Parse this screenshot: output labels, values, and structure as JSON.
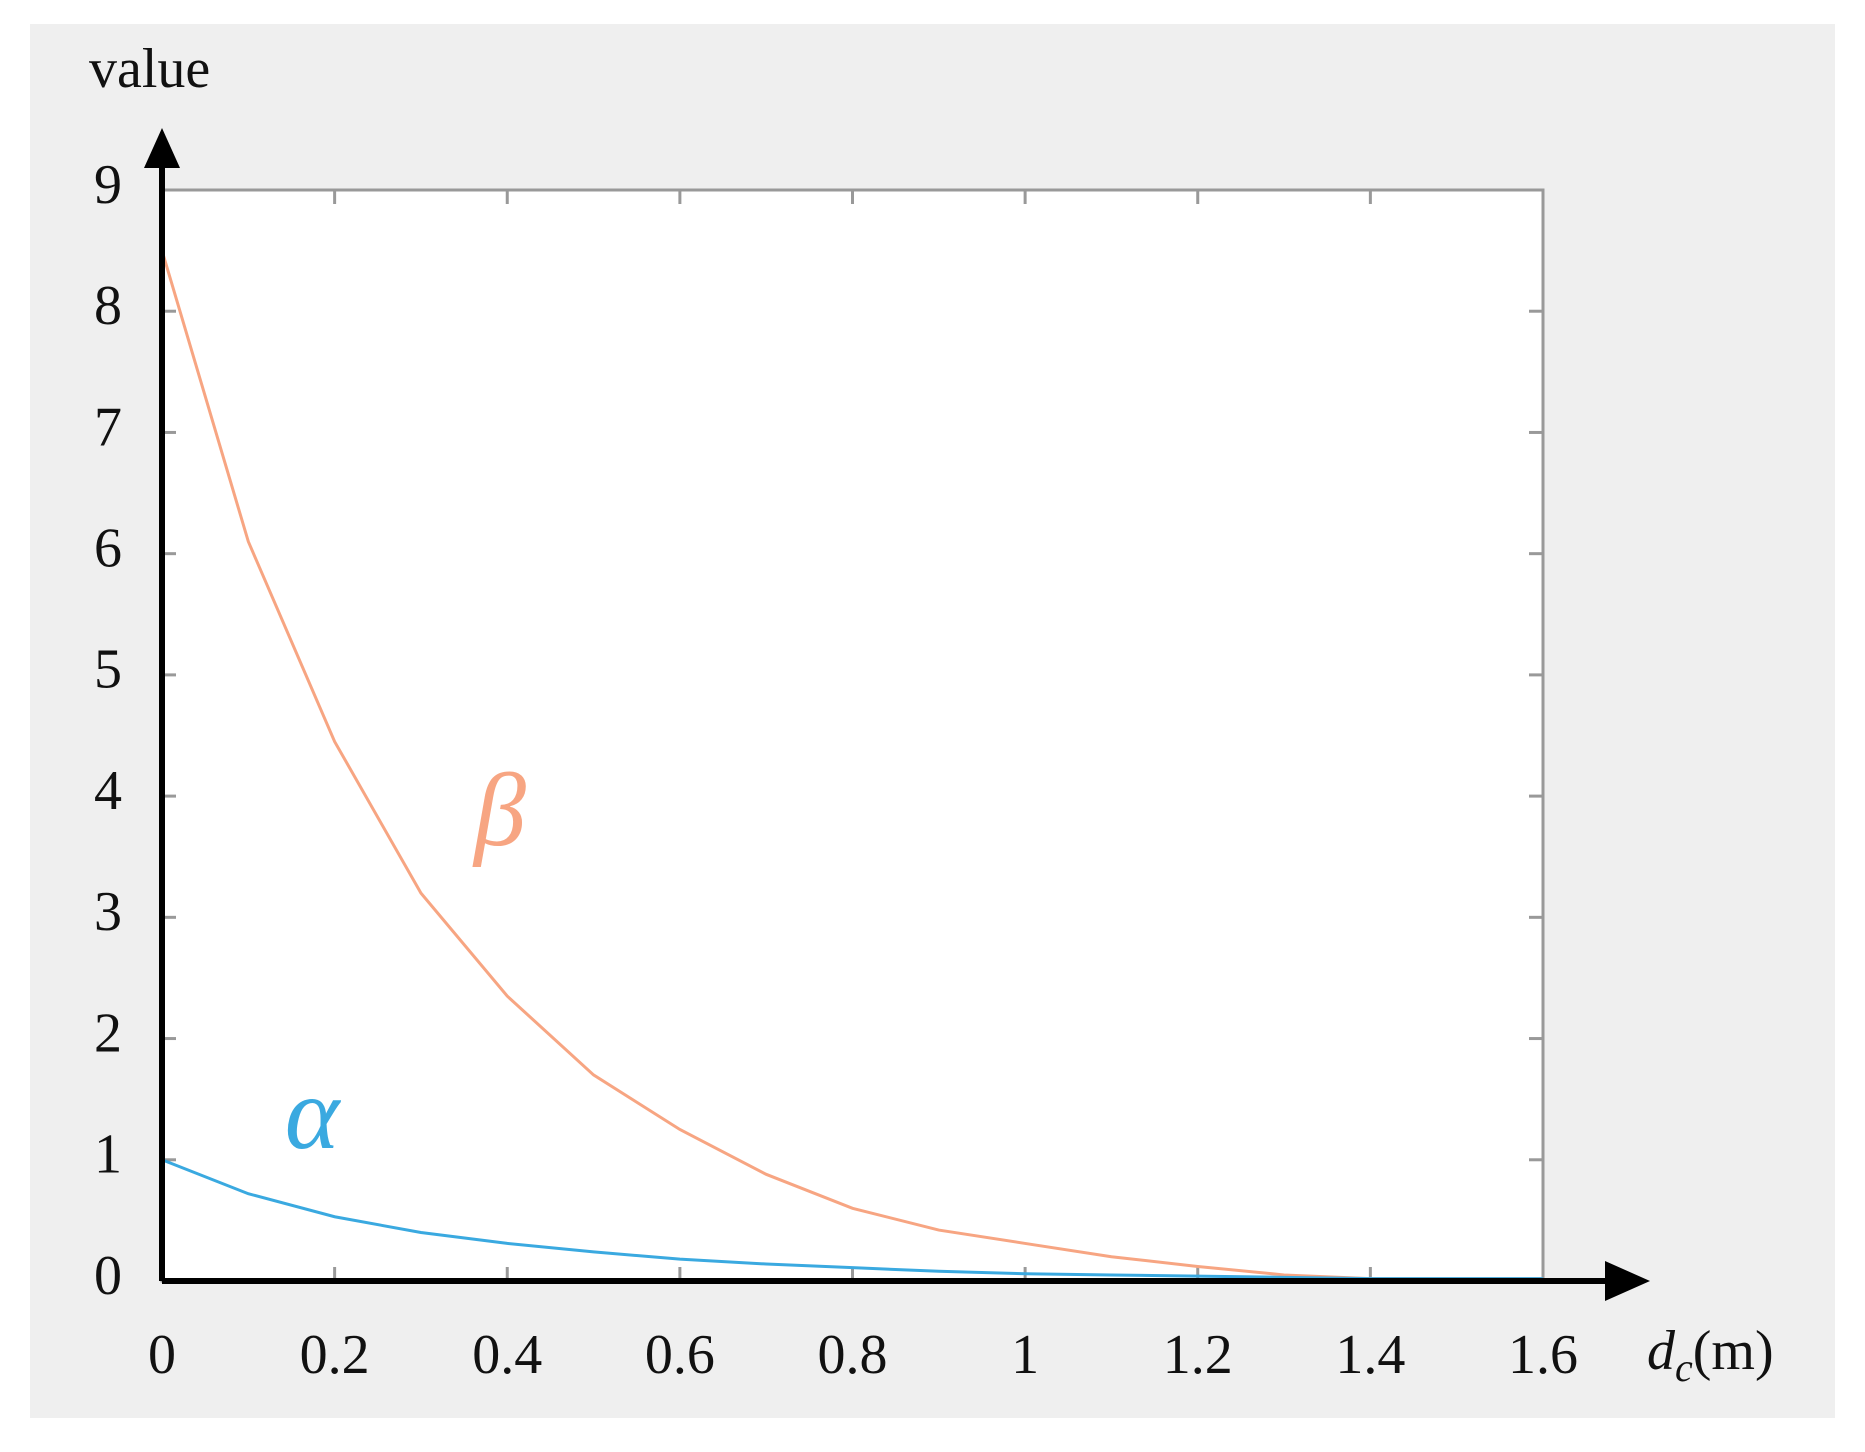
{
  "chart_data": {
    "type": "line",
    "y_label": "value",
    "x_label": {
      "variable": "d",
      "subscript": "c",
      "unit": "(m)"
    },
    "x": [
      0,
      0.1,
      0.2,
      0.3,
      0.4,
      0.5,
      0.6,
      0.7,
      0.8,
      0.9,
      1.0,
      1.1,
      1.2,
      1.3,
      1.4,
      1.5,
      1.6
    ],
    "series": [
      {
        "name": "β",
        "color": "#f7a582",
        "values": [
          8.5,
          6.1,
          4.45,
          3.2,
          2.35,
          1.7,
          1.25,
          0.88,
          0.6,
          0.42,
          0.31,
          0.2,
          0.12,
          0.05,
          0.02,
          0.02,
          0.02
        ]
      },
      {
        "name": "α",
        "color": "#3aa9e0",
        "values": [
          1.0,
          0.72,
          0.53,
          0.4,
          0.31,
          0.24,
          0.18,
          0.14,
          0.11,
          0.08,
          0.06,
          0.05,
          0.04,
          0.03,
          0.02,
          0.02,
          0.02
        ]
      }
    ],
    "xlim": [
      0,
      1.6
    ],
    "ylim": [
      0,
      9
    ],
    "xticks": [
      0,
      0.2,
      0.4,
      0.6,
      0.8,
      1,
      1.2,
      1.4,
      1.6
    ],
    "yticks": [
      0,
      1,
      2,
      3,
      4,
      5,
      6,
      7,
      8,
      9
    ]
  }
}
